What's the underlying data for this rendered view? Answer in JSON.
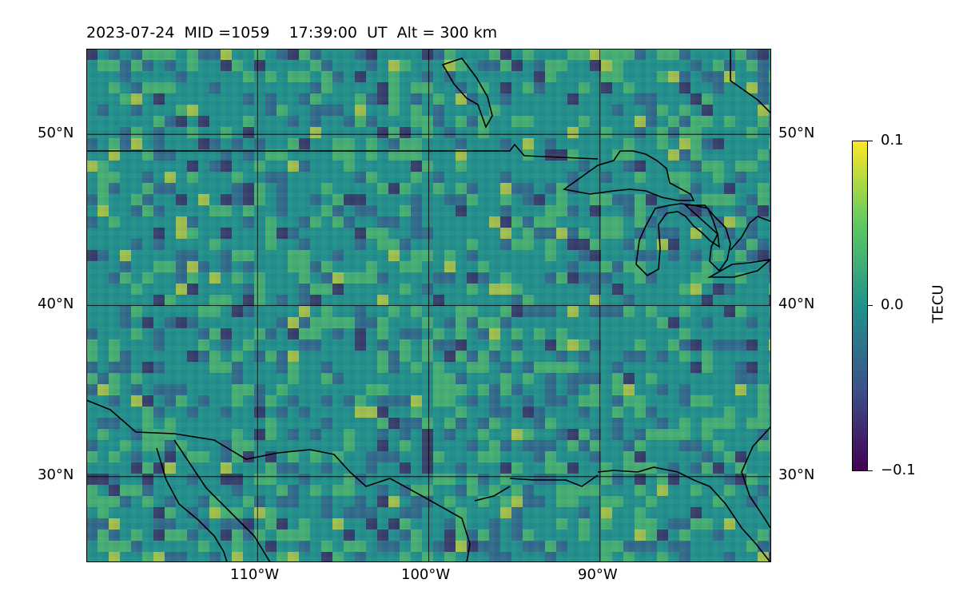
{
  "title": {
    "text": "2023-07-24  MID =1059    17:39:00  UT  Alt = 300 km"
  },
  "map": {
    "projection": "plate-carree",
    "lon_range": [
      -120,
      -80
    ],
    "lat_range": [
      25,
      55
    ],
    "field": "TEC perturbation",
    "colormap": "viridis",
    "background_color": "#2b8a8b",
    "gridlines": true,
    "lat_ticks": [
      "50°N",
      "40°N",
      "30°N"
    ],
    "lat_tick_values": [
      50,
      40,
      30
    ],
    "lon_ticks": [
      "110°W",
      "100°W",
      "90°W"
    ],
    "lon_tick_values": [
      -110,
      -100,
      -90
    ]
  },
  "colorbar": {
    "label": "TECU",
    "max_label": "0.1",
    "mid_label": "0.0",
    "min_label": "−0.1",
    "range": [
      -0.1,
      0.1
    ],
    "colors": [
      "#440154",
      "#3b528b",
      "#21918c",
      "#5ec962",
      "#fde725"
    ]
  }
}
